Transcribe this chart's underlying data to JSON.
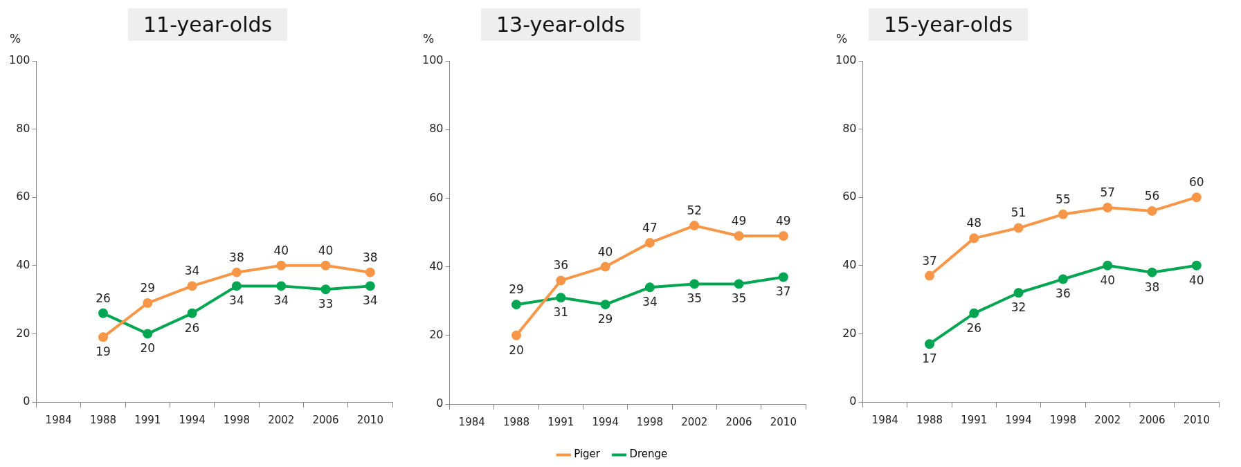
{
  "chart_data": [
    {
      "type": "line",
      "title": "11-year-olds",
      "ylabel": "%",
      "categories": [
        "1984",
        "1988",
        "1991",
        "1994",
        "1998",
        "2002",
        "2006",
        "2010"
      ],
      "ylim": [
        0,
        100
      ],
      "yticks": [
        0,
        20,
        40,
        60,
        80,
        100
      ],
      "grid": false,
      "marker": "circle",
      "data_labels": true,
      "legend": false,
      "series": [
        {
          "color": "#f79646",
          "values": [
            null,
            19,
            29,
            34,
            38,
            40,
            40,
            38
          ]
        },
        {
          "color": "#00a651",
          "values": [
            null,
            26,
            20,
            26,
            34,
            34,
            33,
            34
          ]
        }
      ]
    },
    {
      "type": "line",
      "title": "13-year-olds",
      "ylabel": "%",
      "categories": [
        "1984",
        "1988",
        "1991",
        "1994",
        "1998",
        "2002",
        "2006",
        "2010"
      ],
      "ylim": [
        0,
        100
      ],
      "yticks": [
        0,
        20,
        40,
        60,
        80,
        100
      ],
      "grid": false,
      "marker": "circle",
      "data_labels": true,
      "legend": "bottom",
      "series": [
        {
          "name": "Piger",
          "color": "#f79646",
          "values": [
            null,
            20,
            36,
            40,
            47,
            52,
            49,
            49
          ]
        },
        {
          "name": "Drenge",
          "color": "#00a651",
          "values": [
            null,
            29,
            31,
            29,
            34,
            35,
            35,
            37
          ]
        }
      ]
    },
    {
      "type": "line",
      "title": "15-year-olds",
      "ylabel": "%",
      "categories": [
        "1984",
        "1988",
        "1991",
        "1994",
        "1998",
        "2002",
        "2006",
        "2010"
      ],
      "ylim": [
        0,
        100
      ],
      "yticks": [
        0,
        20,
        40,
        60,
        80,
        100
      ],
      "grid": false,
      "marker": "circle",
      "data_labels": true,
      "legend": false,
      "series": [
        {
          "color": "#f79646",
          "values": [
            null,
            37,
            48,
            51,
            55,
            57,
            56,
            60
          ]
        },
        {
          "color": "#00a651",
          "values": [
            null,
            17,
            26,
            32,
            36,
            40,
            38,
            40
          ]
        }
      ]
    }
  ]
}
